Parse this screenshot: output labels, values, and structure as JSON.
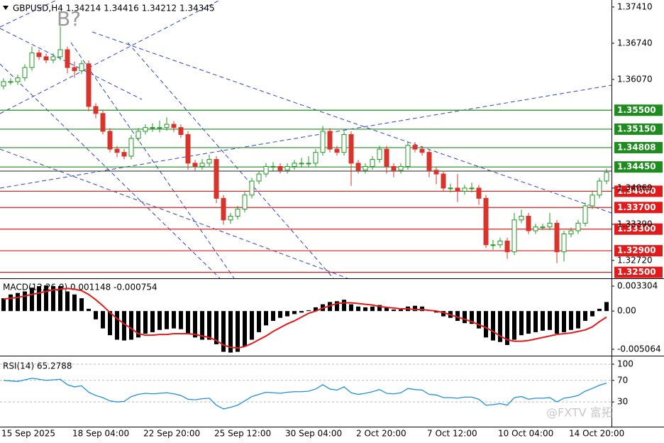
{
  "watermark": "@FXTV 富拓",
  "chart_data": [
    {
      "type": "candlestick",
      "title": "GBPUSD,H4  1.34214 1.34416 1.34212 1.34345",
      "annotation": "B?",
      "categories": [
        "15 Sep 2025",
        null,
        null,
        null,
        null,
        null,
        null,
        null,
        null,
        null,
        "18 Sep 04:00",
        null,
        null,
        null,
        null,
        null,
        null,
        null,
        null,
        null,
        "22 Sep 20:00",
        null,
        null,
        null,
        null,
        null,
        null,
        null,
        null,
        null,
        "25 Sep 12:00",
        null,
        null,
        null,
        null,
        null,
        null,
        null,
        null,
        null,
        "30 Sep 04:00",
        null,
        null,
        null,
        null,
        null,
        null,
        null,
        null,
        null,
        "2 Oct 20:00",
        null,
        null,
        null,
        null,
        null,
        null,
        null,
        null,
        null,
        "7 Oct 12:00",
        null,
        null,
        null,
        null,
        null,
        null,
        null,
        null,
        null,
        "10 Oct 04:00",
        null,
        null,
        null,
        null,
        null,
        null,
        null,
        null,
        null,
        "14 Oct 20:00",
        null,
        null,
        null,
        null,
        null
      ],
      "open": [
        1.3595,
        1.3603,
        1.3603,
        1.361,
        1.3629,
        1.3656,
        1.3649,
        1.3643,
        1.3649,
        1.3662,
        1.3629,
        1.3623,
        1.3636,
        1.3557,
        1.3544,
        1.3511,
        1.3478,
        1.3472,
        1.3465,
        1.3498,
        1.3511,
        1.3518,
        1.3518,
        1.3518,
        1.3524,
        1.3518,
        1.3505,
        1.3452,
        1.3446,
        1.3452,
        1.3459,
        1.3387,
        1.3347,
        1.3354,
        1.3367,
        1.3393,
        1.3419,
        1.3432,
        1.3446,
        1.3446,
        1.3439,
        1.3446,
        1.3452,
        1.3452,
        1.3452,
        1.3472,
        1.3511,
        1.3478,
        1.3472,
        1.3505,
        1.3452,
        1.3439,
        1.3446,
        1.3459,
        1.3478,
        1.3446,
        1.3439,
        1.3446,
        1.3485,
        1.3478,
        1.3472,
        1.3439,
        1.3432,
        1.3406,
        1.3406,
        1.34,
        1.3406,
        1.3406,
        1.3387,
        1.3301,
        1.3301,
        1.3308,
        1.3288,
        1.3347,
        1.3354,
        1.3327,
        1.3334,
        1.3334,
        1.3341,
        1.3288,
        1.3321,
        1.3327,
        1.3341,
        1.3373,
        1.3393,
        1.3419
      ],
      "high": [
        1.3609,
        1.3609,
        1.3616,
        1.3635,
        1.3668,
        1.3662,
        1.3655,
        1.3655,
        1.3705,
        1.3668,
        1.364,
        1.3642,
        1.3642,
        1.3563,
        1.355,
        1.3517,
        1.3484,
        1.3478,
        1.3504,
        1.3517,
        1.3524,
        1.3526,
        1.3531,
        1.3537,
        1.353,
        1.3524,
        1.3511,
        1.3458,
        1.346,
        1.3468,
        1.3465,
        1.3393,
        1.336,
        1.3373,
        1.3399,
        1.3425,
        1.3438,
        1.3452,
        1.3454,
        1.3452,
        1.3452,
        1.3458,
        1.3462,
        1.3465,
        1.3478,
        1.3521,
        1.3517,
        1.3484,
        1.3511,
        1.3511,
        1.3458,
        1.3452,
        1.3465,
        1.3484,
        1.3484,
        1.3452,
        1.3452,
        1.3491,
        1.3491,
        1.3484,
        1.3478,
        1.3445,
        1.3438,
        1.3414,
        1.3432,
        1.3412,
        1.3416,
        1.3412,
        1.3393,
        1.331,
        1.3314,
        1.3314,
        1.336,
        1.3366,
        1.336,
        1.334,
        1.334,
        1.336,
        1.3347,
        1.3327,
        1.3333,
        1.3347,
        1.3379,
        1.3399,
        1.3425,
        1.3442
      ],
      "low": [
        1.3589,
        1.3597,
        1.3597,
        1.3604,
        1.3623,
        1.3643,
        1.3637,
        1.3637,
        1.3643,
        1.3618,
        1.361,
        1.3617,
        1.3548,
        1.3535,
        1.3505,
        1.3472,
        1.3463,
        1.3459,
        1.3459,
        1.3492,
        1.3505,
        1.351,
        1.3509,
        1.3512,
        1.351,
        1.3499,
        1.344,
        1.3437,
        1.344,
        1.3446,
        1.3378,
        1.3338,
        1.334,
        1.3348,
        1.3361,
        1.3387,
        1.3413,
        1.3426,
        1.3438,
        1.3433,
        1.3433,
        1.344,
        1.3444,
        1.3446,
        1.3446,
        1.3466,
        1.3472,
        1.3466,
        1.3466,
        1.341,
        1.3433,
        1.3433,
        1.344,
        1.3453,
        1.3433,
        1.3426,
        1.3433,
        1.344,
        1.3472,
        1.3466,
        1.3426,
        1.3413,
        1.34,
        1.3398,
        1.338,
        1.3394,
        1.3398,
        1.3375,
        1.3295,
        1.3292,
        1.3295,
        1.3275,
        1.3282,
        1.3341,
        1.3321,
        1.3321,
        1.3328,
        1.3328,
        1.3267,
        1.327,
        1.3315,
        1.3321,
        1.3335,
        1.3367,
        1.3387,
        1.3413
      ],
      "close": [
        1.3603,
        1.3603,
        1.361,
        1.3629,
        1.3656,
        1.3649,
        1.3643,
        1.3649,
        1.3662,
        1.3629,
        1.3623,
        1.3636,
        1.3557,
        1.3544,
        1.3511,
        1.3478,
        1.3472,
        1.3465,
        1.3498,
        1.3511,
        1.3518,
        1.3518,
        1.3518,
        1.3524,
        1.3518,
        1.3505,
        1.3452,
        1.3446,
        1.3452,
        1.3459,
        1.3387,
        1.3347,
        1.3354,
        1.3367,
        1.3393,
        1.3419,
        1.3432,
        1.3446,
        1.3446,
        1.3439,
        1.3446,
        1.3452,
        1.3452,
        1.3452,
        1.3472,
        1.3511,
        1.3478,
        1.3472,
        1.3505,
        1.3452,
        1.3439,
        1.3446,
        1.3459,
        1.3478,
        1.3446,
        1.3439,
        1.3446,
        1.3485,
        1.3478,
        1.3472,
        1.3439,
        1.3432,
        1.3406,
        1.3406,
        1.34,
        1.3406,
        1.3406,
        1.3387,
        1.3301,
        1.3301,
        1.3308,
        1.3288,
        1.3347,
        1.3354,
        1.3327,
        1.3334,
        1.3334,
        1.3341,
        1.3288,
        1.3321,
        1.3327,
        1.3341,
        1.3373,
        1.3393,
        1.3419,
        1.3435
      ],
      "up_color": "#1f9a1f",
      "down_color": "#d9342b",
      "ylim": [
        1.3239,
        1.3754
      ],
      "yticks": [
        {
          "value": 1.3741,
          "label": "1.37410"
        },
        {
          "value": 1.3674,
          "label": "1.36740"
        },
        {
          "value": 1.3607,
          "label": "1.36070"
        },
        {
          "value": 1.3406,
          "label": "1.34060"
        },
        {
          "value": 1.3339,
          "label": "1.33390"
        },
        {
          "value": 1.3272,
          "label": "1.32720"
        }
      ],
      "levels": [
        {
          "value": 1.355,
          "label": "1.35500",
          "color": "#1e8c1e"
        },
        {
          "value": 1.3515,
          "label": "1.35150",
          "color": "#1e8c1e"
        },
        {
          "value": 1.34808,
          "label": "1.34808",
          "color": "#1e8c1e"
        },
        {
          "value": 1.3445,
          "label": "1.34450",
          "color": "#1e8c1e"
        },
        {
          "value": 1.34,
          "label": "1.34000",
          "color": "#e01b1b"
        },
        {
          "value": 1.337,
          "label": "1.33700",
          "color": "#e01b1b"
        },
        {
          "value": 1.333,
          "label": "1.33300",
          "color": "#e01b1b"
        },
        {
          "value": 1.329,
          "label": "1.32900",
          "color": "#e01b1b"
        },
        {
          "value": 1.325,
          "label": "1.32500",
          "color": "#e01b1b"
        }
      ]
    },
    {
      "type": "bar",
      "title": "MACD(12,26,9) 0.001148 -0.000754",
      "values": [
        0.0017,
        0.0022,
        0.0024,
        0.0026,
        0.0031,
        0.0033,
        0.0034,
        0.0033,
        0.0033,
        0.0026,
        0.0022,
        0.0017,
        0.0003,
        -0.0011,
        -0.0023,
        -0.0032,
        -0.0038,
        -0.0039,
        -0.0038,
        -0.0035,
        -0.003,
        -0.0028,
        -0.0025,
        -0.0024,
        -0.0023,
        -0.0024,
        -0.003,
        -0.0035,
        -0.0038,
        -0.0038,
        -0.0044,
        -0.0054,
        -0.0055,
        -0.0054,
        -0.0047,
        -0.0038,
        -0.0028,
        -0.0019,
        -0.0013,
        -0.0009,
        -0.0007,
        -0.0004,
        -0.0002,
        0.0001,
        0.0005,
        0.0009,
        0.0012,
        0.0013,
        0.0015,
        0.0009,
        0.0006,
        0.0005,
        0.0006,
        0.0008,
        0.0005,
        0.0002,
        0.0002,
        0.0006,
        0.0007,
        0.0006,
        0.0001,
        -0.0002,
        -0.0007,
        -0.0009,
        -0.0013,
        -0.0016,
        -0.0017,
        -0.0023,
        -0.0035,
        -0.0039,
        -0.0041,
        -0.0045,
        -0.0038,
        -0.0032,
        -0.003,
        -0.0028,
        -0.0026,
        -0.0025,
        -0.003,
        -0.0028,
        -0.0025,
        -0.0023,
        -0.0013,
        -0.0007,
        0.0003,
        0.0012
      ],
      "color": "#000000",
      "signal": [
        0.0016,
        0.0017,
        0.0018,
        0.002,
        0.0022,
        0.0024,
        0.0026,
        0.0028,
        0.0029,
        0.003,
        0.0029,
        0.0027,
        0.0022,
        0.0015,
        0.0007,
        -0.0002,
        -0.001,
        -0.0017,
        -0.0023,
        -0.003,
        -0.0032,
        -0.0032,
        -0.0031,
        -0.0031,
        -0.003,
        -0.003,
        -0.003,
        -0.0031,
        -0.0033,
        -0.0035,
        -0.0039,
        -0.0045,
        -0.0048,
        -0.0049,
        -0.0047,
        -0.0043,
        -0.0038,
        -0.0033,
        -0.0027,
        -0.0022,
        -0.0017,
        -0.0013,
        -0.0008,
        -0.0003,
        0.0,
        0.0004,
        0.0007,
        0.001,
        0.0011,
        0.0011,
        0.001,
        0.0009,
        0.0008,
        0.0006,
        0.0005,
        0.0004,
        0.0003,
        0.0003,
        0.0002,
        0.0002,
        0.0001,
        0.0,
        -0.0002,
        -0.0005,
        -0.0008,
        -0.0011,
        -0.0014,
        -0.0018,
        -0.0022,
        -0.0027,
        -0.0033,
        -0.0038,
        -0.004,
        -0.004,
        -0.0039,
        -0.0037,
        -0.0035,
        -0.0033,
        -0.0031,
        -0.003,
        -0.0029,
        -0.0027,
        -0.0025,
        -0.0021,
        -0.0014,
        -0.0008
      ],
      "signal_color": "#e21c1c",
      "ylim": [
        -0.00582,
        0.00406
      ],
      "yticks": [
        0.003304,
        {
          "value": 0,
          "label": "0.00"
        },
        -0.005064
      ]
    },
    {
      "type": "line",
      "title": "RSI(14) 65.2788",
      "values": [
        70,
        69,
        68,
        71,
        74,
        72,
        70,
        71,
        72,
        62,
        58,
        60,
        48,
        42,
        38,
        32,
        30,
        31,
        40,
        44,
        46,
        45,
        46,
        47,
        45,
        42,
        35,
        34,
        36,
        37,
        24,
        17,
        20,
        24,
        32,
        40,
        44,
        48,
        47,
        46,
        48,
        49,
        49,
        50,
        54,
        62,
        54,
        52,
        58,
        47,
        44,
        46,
        49,
        53,
        46,
        45,
        47,
        55,
        53,
        52,
        44,
        43,
        38,
        38,
        37,
        39,
        39,
        35,
        24,
        25,
        27,
        24,
        38,
        40,
        35,
        37,
        37,
        38,
        30,
        37,
        39,
        42,
        50,
        55,
        61,
        65
      ],
      "color": "#1e90e0",
      "ylim": [
        -14.5,
        110.5
      ],
      "yticks": [
        100,
        70,
        30
      ]
    }
  ]
}
